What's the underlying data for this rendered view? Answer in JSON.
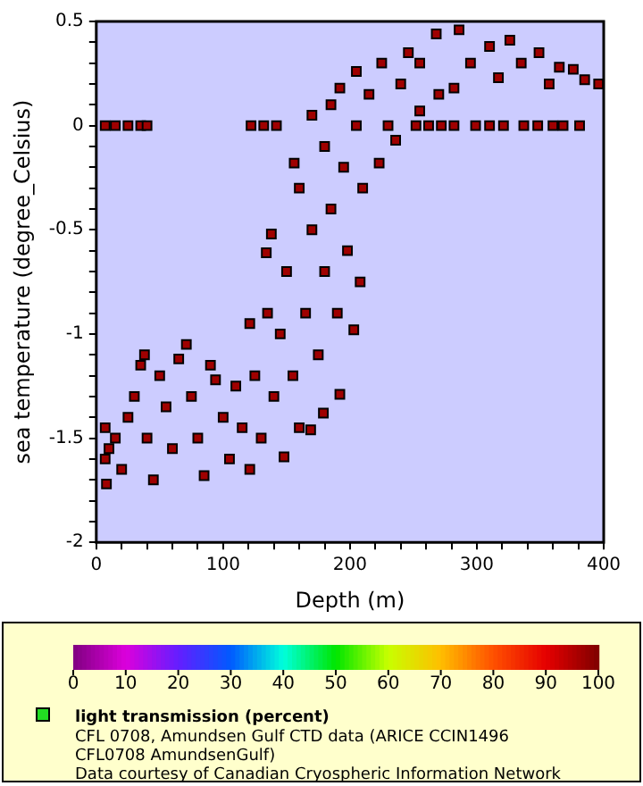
{
  "chart_data": {
    "type": "scatter",
    "xlabel": "Depth (m)",
    "ylabel": "sea temperature (degree_Celsius)",
    "clabel": "light transmission (percent)",
    "annotations": [
      "CFL 0708, Amundsen Gulf CTD data (ARICE CCIN1496",
      "CFL0708 AmundsenGulf)",
      "Data courtesy of Canadian Cryospheric Information Network"
    ],
    "x": [
      7,
      7,
      8,
      10,
      15,
      20,
      25,
      30,
      35,
      38,
      40,
      45,
      50,
      55,
      60,
      65,
      71,
      75,
      80,
      85,
      90,
      94,
      100,
      105,
      110,
      115,
      121,
      121,
      125,
      130,
      134,
      135,
      138,
      140,
      145,
      148,
      150,
      155,
      156,
      160,
      160,
      165,
      169,
      170,
      170,
      175,
      179,
      180,
      180,
      185,
      185,
      190,
      192,
      192,
      195,
      198,
      203,
      205,
      205,
      208,
      210,
      215,
      223,
      225,
      230,
      236,
      240,
      246,
      255,
      255,
      268,
      270,
      282,
      286,
      295,
      310,
      317,
      326,
      335,
      349,
      357,
      365,
      376,
      385,
      396,
      7,
      15,
      25,
      35,
      40,
      122,
      132,
      142,
      252,
      262,
      272,
      282,
      299,
      310,
      321,
      337,
      348,
      360,
      368,
      381
    ],
    "values": [
      -1.45,
      -1.6,
      -1.72,
      -1.55,
      -1.5,
      -1.65,
      -1.4,
      -1.3,
      -1.15,
      -1.1,
      -1.5,
      -1.7,
      -1.2,
      -1.35,
      -1.55,
      -1.12,
      -1.05,
      -1.3,
      -1.5,
      -1.68,
      -1.15,
      -1.22,
      -1.4,
      -1.6,
      -1.25,
      -1.45,
      -1.65,
      -0.95,
      -1.2,
      -1.5,
      -0.61,
      -0.9,
      -0.52,
      -1.3,
      -1.0,
      -1.59,
      -0.7,
      -1.2,
      -0.18,
      -0.3,
      -1.45,
      -0.9,
      -1.46,
      -0.5,
      0.05,
      -1.1,
      -1.38,
      -0.7,
      -0.1,
      0.1,
      -0.4,
      -0.9,
      0.18,
      -1.29,
      -0.2,
      -0.6,
      -0.98,
      0.26,
      0.0,
      -0.75,
      -0.3,
      0.15,
      -0.18,
      0.3,
      0.0,
      -0.07,
      0.2,
      0.35,
      0.07,
      0.3,
      0.44,
      0.15,
      0.18,
      0.46,
      0.3,
      0.38,
      0.23,
      0.41,
      0.3,
      0.35,
      0.2,
      0.28,
      0.27,
      0.22,
      0.2,
      0,
      0,
      0,
      0,
      0,
      0,
      0,
      0,
      0,
      0,
      0,
      0,
      0,
      0,
      0,
      0,
      0,
      0,
      0,
      0
    ],
    "cvalues": [
      97,
      97,
      97,
      97,
      97,
      97,
      97,
      97,
      97,
      97,
      97,
      97,
      97,
      97,
      97,
      97,
      97,
      97,
      97,
      97,
      97,
      97,
      97,
      97,
      97,
      97,
      97,
      97,
      97,
      97,
      97,
      97,
      97,
      97,
      97,
      97,
      97,
      97,
      97,
      97,
      97,
      97,
      97,
      97,
      97,
      97,
      97,
      97,
      97,
      97,
      97,
      97,
      97,
      97,
      97,
      97,
      97,
      97,
      97,
      97,
      97,
      97,
      97,
      97,
      97,
      97,
      97,
      97,
      97,
      97,
      97,
      97,
      97,
      97,
      97,
      97,
      97,
      97,
      97,
      97,
      97,
      97,
      97,
      97,
      97,
      97,
      97,
      97,
      97,
      97,
      97,
      97,
      97,
      97,
      97,
      97,
      97,
      97,
      97,
      97,
      97,
      97,
      97,
      97,
      97
    ],
    "marker": "square",
    "xlim": [
      0,
      400
    ],
    "xticks": [
      0,
      {
        "value": 20,
        "label": null
      },
      {
        "value": 40,
        "label": null
      },
      {
        "value": 60,
        "label": null
      },
      {
        "value": 80,
        "label": null
      },
      100,
      {
        "value": 120,
        "label": null
      },
      {
        "value": 140,
        "label": null
      },
      {
        "value": 160,
        "label": null
      },
      {
        "value": 180,
        "label": null
      },
      200,
      {
        "value": 220,
        "label": null
      },
      {
        "value": 240,
        "label": null
      },
      {
        "value": 260,
        "label": null
      },
      {
        "value": 280,
        "label": null
      },
      300,
      {
        "value": 320,
        "label": null
      },
      {
        "value": 340,
        "label": null
      },
      {
        "value": 360,
        "label": null
      },
      {
        "value": 380,
        "label": null
      },
      400
    ],
    "ylim": [
      -2,
      0.5
    ],
    "yticks": [
      -2,
      {
        "value": -1.9,
        "label": null
      },
      {
        "value": -1.8,
        "label": null
      },
      {
        "value": -1.7,
        "label": null
      },
      {
        "value": -1.6,
        "label": null
      },
      -1.5,
      {
        "value": -1.4,
        "label": null
      },
      {
        "value": -1.3,
        "label": null
      },
      {
        "value": -1.2,
        "label": null
      },
      {
        "value": -1.1,
        "label": null
      },
      -1,
      {
        "value": -0.9,
        "label": null
      },
      {
        "value": -0.8,
        "label": null
      },
      {
        "value": -0.7,
        "label": null
      },
      {
        "value": -0.6,
        "label": null
      },
      -0.5,
      {
        "value": -0.4,
        "label": null
      },
      {
        "value": -0.3,
        "label": null
      },
      {
        "value": -0.2,
        "label": null
      },
      {
        "value": -0.1,
        "label": null
      },
      0,
      {
        "value": 0.1,
        "label": null
      },
      {
        "value": 0.2,
        "label": null
      },
      {
        "value": 0.3,
        "label": null
      },
      {
        "value": 0.4,
        "label": null
      },
      0.5
    ],
    "clim": [
      0,
      100
    ],
    "cticks": [
      0,
      10,
      20,
      30,
      40,
      50,
      60,
      70,
      80,
      90,
      100
    ],
    "grid": false,
    "legend": false
  }
}
